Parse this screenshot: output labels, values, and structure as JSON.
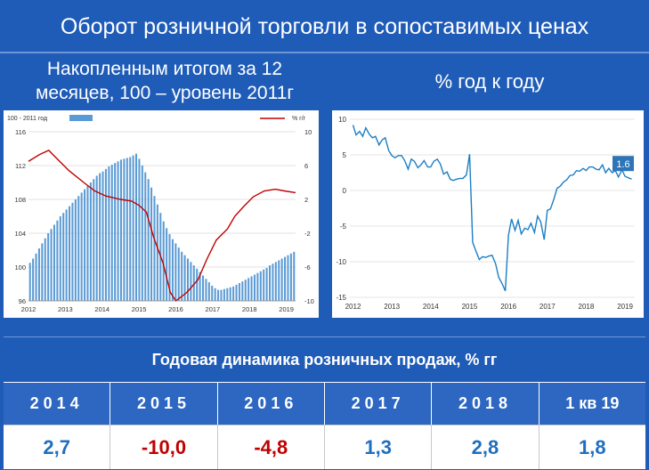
{
  "header": {
    "title": "Оборот розничной торговли в сопоставимых ценах"
  },
  "left_subtitle_line1": "Накопленным итогом за 12",
  "left_subtitle_line2": "месяцев, 100 – уровень 2011г",
  "right_subtitle": "% год к году",
  "colors": {
    "bg": "#1f5cb8",
    "bar": "#5b9bd5",
    "line_red": "#c00000",
    "line_blue": "#1b7fc4",
    "positive": "#1f6fbf",
    "negative": "#c00000"
  },
  "chart_data": [
    {
      "type": "bar",
      "legend": [
        {
          "name": "100 - 2011 год",
          "kind": "bar"
        },
        {
          "name": "% г/г",
          "kind": "line"
        }
      ],
      "x_tick_labels": [
        "2012",
        "2013",
        "2014",
        "2015",
        "2016",
        "2017",
        "2018",
        "2019"
      ],
      "y_left_ticks": [
        "116",
        "112",
        "108",
        "104",
        "100",
        "96"
      ],
      "y_right_ticks": [
        "10",
        "6",
        "2",
        "-2",
        "-6",
        "-10"
      ],
      "ylim_left": [
        96,
        116
      ],
      "ylim_right": [
        -10,
        10
      ],
      "x_start": 2012.0,
      "x_end": 2019.25,
      "series": [
        {
          "name": "100 - 2011 год",
          "kind": "bar",
          "values": [
            100.5,
            101.0,
            101.6,
            102.2,
            102.8,
            103.4,
            104.0,
            104.5,
            105.0,
            105.5,
            106.0,
            106.4,
            106.8,
            107.2,
            107.6,
            108.0,
            108.4,
            108.8,
            109.2,
            109.6,
            110.0,
            110.4,
            110.8,
            111.1,
            111.3,
            111.6,
            111.9,
            112.1,
            112.3,
            112.5,
            112.7,
            112.8,
            112.9,
            113.0,
            113.2,
            113.4,
            112.8,
            112.0,
            111.2,
            110.4,
            109.4,
            108.4,
            107.4,
            106.4,
            105.4,
            104.6,
            103.9,
            103.3,
            102.8,
            102.3,
            101.8,
            101.4,
            101.0,
            100.6,
            100.2,
            99.8,
            99.4,
            99.0,
            98.6,
            98.2,
            97.8,
            97.5,
            97.3,
            97.3,
            97.4,
            97.5,
            97.6,
            97.7,
            97.9,
            98.1,
            98.3,
            98.5,
            98.7,
            98.9,
            99.1,
            99.3,
            99.5,
            99.7,
            99.9,
            100.2,
            100.4,
            100.6,
            100.8,
            101.0,
            101.2,
            101.4,
            101.6,
            101.8
          ]
        },
        {
          "name": "% г/г",
          "kind": "line",
          "points": [
            [
              2012.0,
              6.5
            ],
            [
              2012.3,
              7.3
            ],
            [
              2012.55,
              7.8
            ],
            [
              2012.8,
              6.7
            ],
            [
              2013.1,
              5.4
            ],
            [
              2013.5,
              4.0
            ],
            [
              2013.8,
              3.0
            ],
            [
              2014.1,
              2.4
            ],
            [
              2014.5,
              2.0
            ],
            [
              2014.8,
              1.8
            ],
            [
              2015.0,
              1.3
            ],
            [
              2015.2,
              0.5
            ],
            [
              2015.4,
              -2.5
            ],
            [
              2015.65,
              -5.5
            ],
            [
              2015.85,
              -9.0
            ],
            [
              2016.0,
              -10.0
            ],
            [
              2016.3,
              -9.0
            ],
            [
              2016.6,
              -7.5
            ],
            [
              2016.85,
              -5.0
            ],
            [
              2017.1,
              -2.8
            ],
            [
              2017.4,
              -1.5
            ],
            [
              2017.6,
              0.0
            ],
            [
              2017.85,
              1.2
            ],
            [
              2018.1,
              2.3
            ],
            [
              2018.4,
              3.0
            ],
            [
              2018.7,
              3.2
            ],
            [
              2018.95,
              3.0
            ],
            [
              2019.25,
              2.8
            ]
          ]
        }
      ]
    },
    {
      "type": "line",
      "y_ticks": [
        "10",
        "5",
        "0",
        "-5",
        "-10",
        "-15"
      ],
      "x_tick_labels": [
        "2012",
        "2013",
        "2014",
        "2015",
        "2016",
        "2017",
        "2018",
        "2019"
      ],
      "ylim": [
        -15,
        10
      ],
      "x_start": 2011.92,
      "x_end": 2019.25,
      "annotation": "1.6",
      "series": [
        {
          "name": "",
          "points": [
            [
              2012.0,
              9.2
            ],
            [
              2012.08,
              7.8
            ],
            [
              2012.17,
              8.3
            ],
            [
              2012.25,
              7.6
            ],
            [
              2012.33,
              8.8
            ],
            [
              2012.42,
              7.9
            ],
            [
              2012.5,
              7.4
            ],
            [
              2012.58,
              7.6
            ],
            [
              2012.67,
              6.4
            ],
            [
              2012.75,
              7.1
            ],
            [
              2012.83,
              7.4
            ],
            [
              2012.92,
              5.6
            ],
            [
              2013.0,
              4.9
            ],
            [
              2013.08,
              4.6
            ],
            [
              2013.17,
              4.9
            ],
            [
              2013.25,
              4.9
            ],
            [
              2013.33,
              4.2
            ],
            [
              2013.42,
              3.0
            ],
            [
              2013.5,
              4.4
            ],
            [
              2013.58,
              4.1
            ],
            [
              2013.67,
              3.2
            ],
            [
              2013.75,
              3.6
            ],
            [
              2013.83,
              4.2
            ],
            [
              2013.92,
              3.3
            ],
            [
              2014.0,
              3.3
            ],
            [
              2014.08,
              4.1
            ],
            [
              2014.17,
              4.4
            ],
            [
              2014.25,
              3.7
            ],
            [
              2014.33,
              2.3
            ],
            [
              2014.42,
              2.6
            ],
            [
              2014.5,
              1.6
            ],
            [
              2014.58,
              1.4
            ],
            [
              2014.67,
              1.6
            ],
            [
              2014.75,
              1.7
            ],
            [
              2014.83,
              1.7
            ],
            [
              2014.92,
              2.2
            ],
            [
              2015.0,
              5.1
            ],
            [
              2015.08,
              -7.3
            ],
            [
              2015.17,
              -8.6
            ],
            [
              2015.25,
              -9.7
            ],
            [
              2015.33,
              -9.3
            ],
            [
              2015.42,
              -9.4
            ],
            [
              2015.5,
              -9.2
            ],
            [
              2015.58,
              -9.1
            ],
            [
              2015.67,
              -10.3
            ],
            [
              2015.75,
              -12.2
            ],
            [
              2015.83,
              -13.0
            ],
            [
              2015.92,
              -14.1
            ],
            [
              2016.0,
              -6.3
            ],
            [
              2016.08,
              -4.0
            ],
            [
              2016.17,
              -5.6
            ],
            [
              2016.25,
              -4.2
            ],
            [
              2016.33,
              -6.1
            ],
            [
              2016.42,
              -5.3
            ],
            [
              2016.5,
              -5.5
            ],
            [
              2016.58,
              -4.6
            ],
            [
              2016.67,
              -5.9
            ],
            [
              2016.75,
              -3.6
            ],
            [
              2016.83,
              -4.4
            ],
            [
              2016.92,
              -6.9
            ],
            [
              2017.0,
              -2.8
            ],
            [
              2017.08,
              -2.6
            ],
            [
              2017.17,
              -1.2
            ],
            [
              2017.25,
              0.3
            ],
            [
              2017.33,
              0.6
            ],
            [
              2017.42,
              1.2
            ],
            [
              2017.5,
              1.5
            ],
            [
              2017.58,
              2.1
            ],
            [
              2017.67,
              2.2
            ],
            [
              2017.75,
              2.8
            ],
            [
              2017.83,
              2.7
            ],
            [
              2017.92,
              3.1
            ],
            [
              2018.0,
              2.8
            ],
            [
              2018.08,
              3.3
            ],
            [
              2018.17,
              3.3
            ],
            [
              2018.25,
              3.0
            ],
            [
              2018.33,
              2.9
            ],
            [
              2018.42,
              3.6
            ],
            [
              2018.5,
              2.5
            ],
            [
              2018.58,
              3.1
            ],
            [
              2018.67,
              2.5
            ],
            [
              2018.75,
              2.8
            ],
            [
              2018.83,
              1.9
            ],
            [
              2018.92,
              2.9
            ],
            [
              2019.0,
              2.0
            ],
            [
              2019.08,
              1.8
            ],
            [
              2019.17,
              1.6
            ]
          ]
        }
      ]
    }
  ],
  "table": {
    "title": "Годовая динамика розничных продаж, % гг",
    "columns": [
      "2014",
      "2015",
      "2016",
      "2017",
      "2018",
      "1 кв 19"
    ],
    "values": [
      {
        "text": "2,7",
        "sign": "pos"
      },
      {
        "text": "-10,0",
        "sign": "neg"
      },
      {
        "text": "-4,8",
        "sign": "neg"
      },
      {
        "text": "1,3",
        "sign": "pos"
      },
      {
        "text": "2,8",
        "sign": "pos"
      },
      {
        "text": "1,8",
        "sign": "pos"
      }
    ]
  }
}
